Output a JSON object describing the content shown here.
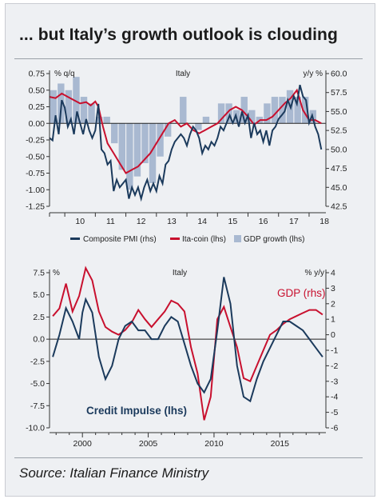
{
  "title": "... but Italy’s growth outlook is clouding",
  "source": "Source: Italian Finance Ministry",
  "colors": {
    "navy": "#1b3a5c",
    "red": "#c8102e",
    "bar": "#a9b9d1",
    "axis": "#333333"
  },
  "chart_data": [
    {
      "type": "line",
      "title": "Italy",
      "left_unit": "% q/q",
      "right_unit": "y/y %",
      "x_ticks": [
        "10",
        "11",
        "12",
        "13",
        "14",
        "15",
        "16",
        "17",
        "18"
      ],
      "xlim": [
        2009.5,
        2018.55
      ],
      "ylim_left": [
        -1.25,
        0.75
      ],
      "ylim_right": [
        42.5,
        60.0
      ],
      "y_ticks_left": [
        "0.75",
        "0.50",
        "0.25",
        "0.00",
        "-0.25",
        "-0.50",
        "-0.75",
        "-1.00",
        "-1.25"
      ],
      "y_ticks_right": [
        "60.0",
        "57.5",
        "55.0",
        "52.5",
        "50.0",
        "47.5",
        "45.0",
        "42.5"
      ],
      "legend_position": "bottom",
      "legend": [
        "Composite PMI (rhs)",
        "Ita-coin (lhs)",
        "GDP growth (lhs)"
      ],
      "series": [
        {
          "name": "GDP growth (lhs)",
          "type": "bar",
          "axis": "left",
          "x": [
            2009.625,
            2009.875,
            2010.125,
            2010.375,
            2010.625,
            2010.875,
            2011.125,
            2011.375,
            2011.625,
            2011.875,
            2012.125,
            2012.375,
            2012.625,
            2012.875,
            2013.125,
            2013.375,
            2013.625,
            2013.875,
            2014.125,
            2014.375,
            2014.625,
            2014.875,
            2015.125,
            2015.375,
            2015.625,
            2015.875,
            2016.125,
            2016.375,
            2016.625,
            2016.875,
            2017.125,
            2017.375,
            2017.625,
            2017.875,
            2018.125,
            2018.375
          ],
          "values": [
            0.5,
            0.6,
            0.5,
            0.7,
            0.4,
            0.3,
            0.1,
            0.1,
            -0.3,
            -0.7,
            -1.0,
            -0.8,
            -0.6,
            -0.9,
            -0.5,
            -0.2,
            0.0,
            0.4,
            0.0,
            -0.1,
            0.1,
            0.0,
            0.3,
            0.3,
            0.2,
            0.4,
            0.2,
            0.1,
            0.3,
            0.4,
            0.4,
            0.5,
            0.4,
            0.4,
            0.2,
            0.0
          ]
        },
        {
          "name": "Ita-coin (lhs)",
          "type": "line",
          "axis": "left",
          "x": [
            2009.5,
            2009.7,
            2009.9,
            2010.1,
            2010.3,
            2010.5,
            2010.7,
            2010.85,
            2011.0,
            2011.1,
            2011.25,
            2011.4,
            2011.6,
            2011.8,
            2012.0,
            2012.2,
            2012.4,
            2012.6,
            2012.8,
            2013.0,
            2013.2,
            2013.4,
            2013.6,
            2013.8,
            2014.0,
            2014.2,
            2014.4,
            2014.6,
            2014.8,
            2015.0,
            2015.2,
            2015.4,
            2015.6,
            2015.8,
            2016.0,
            2016.2,
            2016.4,
            2016.6,
            2016.8,
            2017.0,
            2017.2,
            2017.4,
            2017.6,
            2017.8,
            2018.0,
            2018.2,
            2018.4
          ],
          "values": [
            0.4,
            0.38,
            0.45,
            0.4,
            0.35,
            0.3,
            0.32,
            0.27,
            0.33,
            0.25,
            -0.05,
            -0.3,
            -0.45,
            -0.6,
            -0.75,
            -0.7,
            -0.65,
            -0.55,
            -0.45,
            -0.3,
            -0.15,
            0.0,
            0.05,
            -0.05,
            0.0,
            -0.1,
            -0.15,
            -0.1,
            -0.05,
            0.0,
            0.1,
            0.2,
            0.25,
            0.2,
            0.1,
            -0.02,
            0.05,
            0.05,
            0.1,
            0.2,
            0.3,
            0.38,
            0.5,
            0.2,
            0.05,
            0.05,
            0.0
          ]
        },
        {
          "name": "Composite PMI (rhs)",
          "type": "line",
          "axis": "right",
          "x": [
            2009.5,
            2009.6,
            2009.7,
            2009.8,
            2009.9,
            2010.0,
            2010.1,
            2010.2,
            2010.3,
            2010.4,
            2010.5,
            2010.6,
            2010.7,
            2010.8,
            2010.9,
            2011.0,
            2011.1,
            2011.2,
            2011.3,
            2011.4,
            2011.5,
            2011.6,
            2011.7,
            2011.8,
            2011.9,
            2012.0,
            2012.1,
            2012.2,
            2012.3,
            2012.4,
            2012.5,
            2012.6,
            2012.7,
            2012.8,
            2012.9,
            2013.0,
            2013.1,
            2013.2,
            2013.3,
            2013.4,
            2013.5,
            2013.6,
            2013.7,
            2013.8,
            2013.9,
            2014.0,
            2014.1,
            2014.2,
            2014.3,
            2014.4,
            2014.5,
            2014.6,
            2014.7,
            2014.8,
            2014.9,
            2015.0,
            2015.1,
            2015.2,
            2015.3,
            2015.4,
            2015.5,
            2015.6,
            2015.7,
            2015.8,
            2015.9,
            2016.0,
            2016.1,
            2016.2,
            2016.3,
            2016.4,
            2016.5,
            2016.6,
            2016.7,
            2016.8,
            2016.9,
            2017.0,
            2017.1,
            2017.2,
            2017.3,
            2017.4,
            2017.5,
            2017.6,
            2017.7,
            2017.8,
            2017.9,
            2018.0,
            2018.1,
            2018.2,
            2018.3,
            2018.4
          ],
          "values": [
            51.5,
            51.2,
            54.5,
            52.0,
            56.5,
            55.5,
            53.0,
            54.0,
            52.0,
            55.0,
            53.5,
            52.0,
            54.0,
            52.5,
            51.5,
            52.5,
            56.0,
            50.0,
            49.5,
            48.0,
            48.5,
            44.5,
            46.0,
            45.0,
            45.5,
            46.0,
            43.5,
            45.0,
            44.0,
            45.0,
            43.5,
            45.0,
            46.0,
            44.5,
            45.5,
            44.5,
            46.5,
            45.5,
            48.0,
            48.5,
            50.0,
            51.0,
            51.5,
            52.0,
            51.5,
            50.5,
            52.0,
            53.0,
            52.5,
            51.5,
            49.5,
            50.5,
            50.0,
            51.0,
            50.5,
            51.5,
            53.0,
            52.5,
            53.5,
            54.5,
            53.5,
            54.5,
            53.0,
            55.0,
            53.5,
            54.5,
            51.5,
            53.5,
            52.0,
            52.5,
            51.0,
            52.5,
            50.5,
            52.5,
            53.0,
            54.0,
            54.5,
            55.0,
            56.5,
            55.5,
            57.0,
            56.0,
            58.5,
            57.0,
            56.5,
            53.5,
            54.5,
            53.0,
            52.0,
            50.0
          ]
        }
      ]
    },
    {
      "type": "line",
      "title": "Italy",
      "left_unit": "%",
      "right_unit": "% y/y",
      "x_ticks": [
        "2000",
        "2005",
        "2010",
        "2015"
      ],
      "xlim": [
        1997.5,
        2018.5
      ],
      "ylim_left": [
        -10.0,
        7.5
      ],
      "ylim_right": [
        -6,
        4
      ],
      "y_ticks_left": [
        "7.5",
        "5.0",
        "2.5",
        "0.0",
        "-2.5",
        "-5.0",
        "-7.5",
        "-10.0"
      ],
      "y_ticks_right": [
        "4",
        "3",
        "2",
        "1",
        "0",
        "-1",
        "-2",
        "-3",
        "-4",
        "-5",
        "-6"
      ],
      "annotations": [
        "GDP (rhs)",
        "Credit Impulse (lhs)"
      ],
      "series": [
        {
          "name": "Credit Impulse (lhs)",
          "axis": "left",
          "x": [
            1997.75,
            1998.25,
            1998.75,
            1999.25,
            1999.75,
            2000.0,
            2000.25,
            2000.75,
            2001.25,
            2001.75,
            2002.25,
            2002.75,
            2003.25,
            2003.75,
            2004.25,
            2004.75,
            2005.25,
            2005.75,
            2006.25,
            2006.75,
            2007.25,
            2007.75,
            2008.25,
            2008.75,
            2009.25,
            2009.75,
            2010.25,
            2010.75,
            2011.25,
            2011.75,
            2012.25,
            2012.75,
            2013.25,
            2013.75,
            2014.25,
            2014.75,
            2015.25,
            2015.75,
            2016.25,
            2016.75,
            2017.25,
            2017.75,
            2018.25
          ],
          "values": [
            -2.0,
            0.5,
            3.5,
            2.0,
            0.0,
            3.0,
            4.5,
            3.0,
            -2.0,
            -4.5,
            -3.0,
            0.0,
            1.5,
            2.0,
            1.0,
            1.0,
            0.0,
            0.0,
            1.5,
            2.5,
            2.0,
            -0.5,
            -3.0,
            -5.0,
            -6.0,
            -4.5,
            1.0,
            7.0,
            4.0,
            -3.0,
            -6.5,
            -7.0,
            -4.5,
            -2.5,
            -1.0,
            0.5,
            2.0,
            2.0,
            1.5,
            1.0,
            0.0,
            -1.0,
            -2.0
          ]
        },
        {
          "name": "GDP (rhs)",
          "axis": "right",
          "x": [
            1997.75,
            1998.25,
            1998.75,
            1999.25,
            1999.75,
            2000.25,
            2000.75,
            2001.25,
            2001.75,
            2002.25,
            2002.75,
            2003.25,
            2003.75,
            2004.25,
            2004.75,
            2005.25,
            2005.75,
            2006.25,
            2006.75,
            2007.25,
            2007.75,
            2008.25,
            2008.75,
            2009.25,
            2009.75,
            2010.25,
            2010.75,
            2011.25,
            2011.75,
            2012.25,
            2012.75,
            2013.25,
            2013.75,
            2014.25,
            2014.75,
            2015.25,
            2015.75,
            2016.25,
            2016.75,
            2017.25,
            2017.75,
            2018.25
          ],
          "values": [
            1.2,
            1.7,
            3.3,
            1.5,
            2.5,
            4.3,
            3.5,
            1.5,
            0.5,
            0.2,
            0.0,
            0.3,
            0.8,
            1.6,
            1.0,
            0.5,
            1.0,
            1.5,
            2.2,
            2.0,
            1.5,
            -0.8,
            -2.5,
            -5.5,
            -4.0,
            1.0,
            1.8,
            0.5,
            -0.8,
            -2.8,
            -3.0,
            -2.0,
            -1.0,
            0.0,
            0.3,
            0.7,
            1.0,
            1.2,
            1.4,
            1.6,
            1.6,
            1.3
          ]
        }
      ]
    }
  ]
}
